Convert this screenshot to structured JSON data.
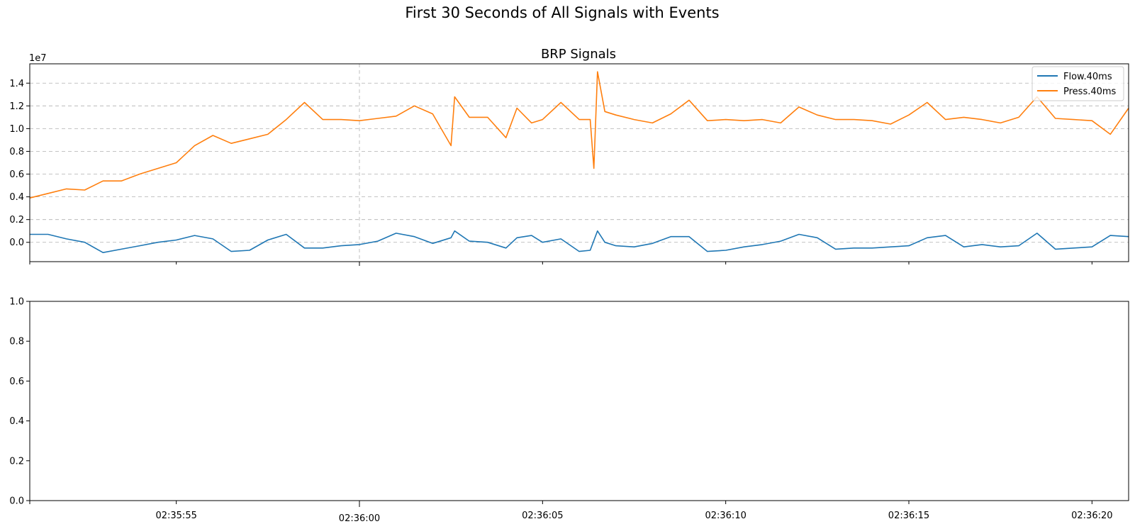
{
  "figure": {
    "suptitle": "First 30 Seconds of All Signals with Events"
  },
  "chart_data": [
    {
      "type": "line",
      "title": "BRP Signals",
      "xlabel": "",
      "ylabel": "",
      "y_offset_label": "1e7",
      "y_scale": 10000000,
      "xlim": [
        "02:35:51",
        "02:36:21"
      ],
      "ylim": [
        -1700000,
        15700000
      ],
      "y_ticks": [
        0,
        2000000,
        4000000,
        6000000,
        8000000,
        10000000,
        12000000,
        14000000
      ],
      "y_tick_labels": [
        "0.0",
        "0.2",
        "0.4",
        "0.6",
        "0.8",
        "1.0",
        "1.2",
        "1.4"
      ],
      "grid": true,
      "grid_style": "dashed",
      "legend_position": "top-right",
      "event_marker_x": "02:36:00",
      "series": [
        {
          "name": "Flow.40ms",
          "color": "#1f77b4",
          "x": [
            "02:35:51",
            "02:35:51.5",
            "02:35:52",
            "02:35:52.5",
            "02:35:53",
            "02:35:53.5",
            "02:35:54",
            "02:35:54.5",
            "02:35:55",
            "02:35:55.5",
            "02:35:56",
            "02:35:56.5",
            "02:35:57",
            "02:35:57.5",
            "02:35:58",
            "02:35:58.5",
            "02:35:59",
            "02:35:59.5",
            "02:36:00",
            "02:36:00.5",
            "02:36:01",
            "02:36:01.5",
            "02:36:02",
            "02:36:02.5",
            "02:36:02.6",
            "02:36:03",
            "02:36:03.5",
            "02:36:04",
            "02:36:04.3",
            "02:36:04.7",
            "02:36:05",
            "02:36:05.5",
            "02:36:06",
            "02:36:06.3",
            "02:36:06.5",
            "02:36:06.7",
            "02:36:07",
            "02:36:07.5",
            "02:36:08",
            "02:36:08.5",
            "02:36:09",
            "02:36:09.5",
            "02:36:10",
            "02:36:10.5",
            "02:36:11",
            "02:36:11.5",
            "02:36:12",
            "02:36:12.5",
            "02:36:13",
            "02:36:13.5",
            "02:36:14",
            "02:36:14.5",
            "02:36:15",
            "02:36:15.5",
            "02:36:16",
            "02:36:16.5",
            "02:36:17",
            "02:36:17.5",
            "02:36:18",
            "02:36:18.5",
            "02:36:19",
            "02:36:19.5",
            "02:36:20",
            "02:36:20.5",
            "02:36:21"
          ],
          "values": [
            700000,
            700000,
            300000,
            0,
            -900000,
            -600000,
            -300000,
            0,
            200000,
            600000,
            300000,
            -800000,
            -700000,
            200000,
            700000,
            -500000,
            -500000,
            -300000,
            -200000,
            100000,
            800000,
            500000,
            -100000,
            400000,
            1000000,
            100000,
            0,
            -500000,
            400000,
            600000,
            0,
            300000,
            -800000,
            -700000,
            1000000,
            0,
            -300000,
            -400000,
            -100000,
            500000,
            500000,
            -800000,
            -700000,
            -400000,
            -200000,
            100000,
            700000,
            400000,
            -600000,
            -500000,
            -500000,
            -400000,
            -300000,
            400000,
            600000,
            -400000,
            -200000,
            -400000,
            -300000,
            800000,
            -600000,
            -500000,
            -400000,
            600000,
            500000
          ]
        },
        {
          "name": "Press.40ms",
          "color": "#ff7f0e",
          "x": [
            "02:35:51",
            "02:35:51.5",
            "02:35:52",
            "02:35:52.5",
            "02:35:53",
            "02:35:53.5",
            "02:35:54",
            "02:35:54.5",
            "02:35:55",
            "02:35:55.5",
            "02:35:56",
            "02:35:56.5",
            "02:35:57",
            "02:35:57.5",
            "02:35:58",
            "02:35:58.5",
            "02:35:59",
            "02:35:59.5",
            "02:36:00",
            "02:36:00.5",
            "02:36:01",
            "02:36:01.5",
            "02:36:02",
            "02:36:02.5",
            "02:36:02.6",
            "02:36:03",
            "02:36:03.5",
            "02:36:04",
            "02:36:04.3",
            "02:36:04.7",
            "02:36:05",
            "02:36:05.5",
            "02:36:06",
            "02:36:06.3",
            "02:36:06.4",
            "02:36:06.5",
            "02:36:06.7",
            "02:36:07",
            "02:36:07.5",
            "02:36:08",
            "02:36:08.5",
            "02:36:09",
            "02:36:09.5",
            "02:36:10",
            "02:36:10.5",
            "02:36:11",
            "02:36:11.5",
            "02:36:12",
            "02:36:12.5",
            "02:36:13",
            "02:36:13.5",
            "02:36:14",
            "02:36:14.5",
            "02:36:15",
            "02:36:15.5",
            "02:36:16",
            "02:36:16.5",
            "02:36:17",
            "02:36:17.5",
            "02:36:18",
            "02:36:18.5",
            "02:36:19",
            "02:36:19.5",
            "02:36:20",
            "02:36:20.5",
            "02:36:21"
          ],
          "values": [
            3900000,
            4300000,
            4700000,
            4600000,
            5400000,
            5400000,
            6000000,
            6500000,
            7000000,
            8500000,
            9400000,
            8700000,
            9100000,
            9500000,
            10800000,
            12300000,
            10800000,
            10800000,
            10700000,
            10900000,
            11100000,
            12000000,
            11300000,
            8500000,
            12800000,
            11000000,
            11000000,
            9200000,
            11800000,
            10500000,
            10800000,
            12300000,
            10800000,
            10800000,
            6500000,
            15000000,
            11500000,
            11200000,
            10800000,
            10500000,
            11300000,
            12500000,
            10700000,
            10800000,
            10700000,
            10800000,
            10500000,
            11900000,
            11200000,
            10800000,
            10800000,
            10700000,
            10400000,
            11200000,
            12300000,
            10800000,
            11000000,
            10800000,
            10500000,
            11000000,
            12800000,
            10900000,
            10800000,
            10700000,
            9500000,
            11800000
          ]
        }
      ]
    },
    {
      "type": "line",
      "title": "",
      "xlabel": "",
      "ylabel": "",
      "xlim": [
        "02:35:51",
        "02:36:21"
      ],
      "ylim": [
        0,
        1
      ],
      "y_ticks": [
        0,
        0.2,
        0.4,
        0.6,
        0.8,
        1.0
      ],
      "y_tick_labels": [
        "0.0",
        "0.2",
        "0.4",
        "0.6",
        "0.8",
        "1.0"
      ],
      "x_ticks": [
        "02:35:55",
        "02:36:00",
        "02:36:05",
        "02:36:10",
        "02:36:15",
        "02:36:20"
      ],
      "x_tick_labels": [
        "02:35:55",
        "02:36:00",
        "02:36:05",
        "02:36:10",
        "02:36:15",
        "02:36:20"
      ],
      "grid": false,
      "series": []
    }
  ]
}
